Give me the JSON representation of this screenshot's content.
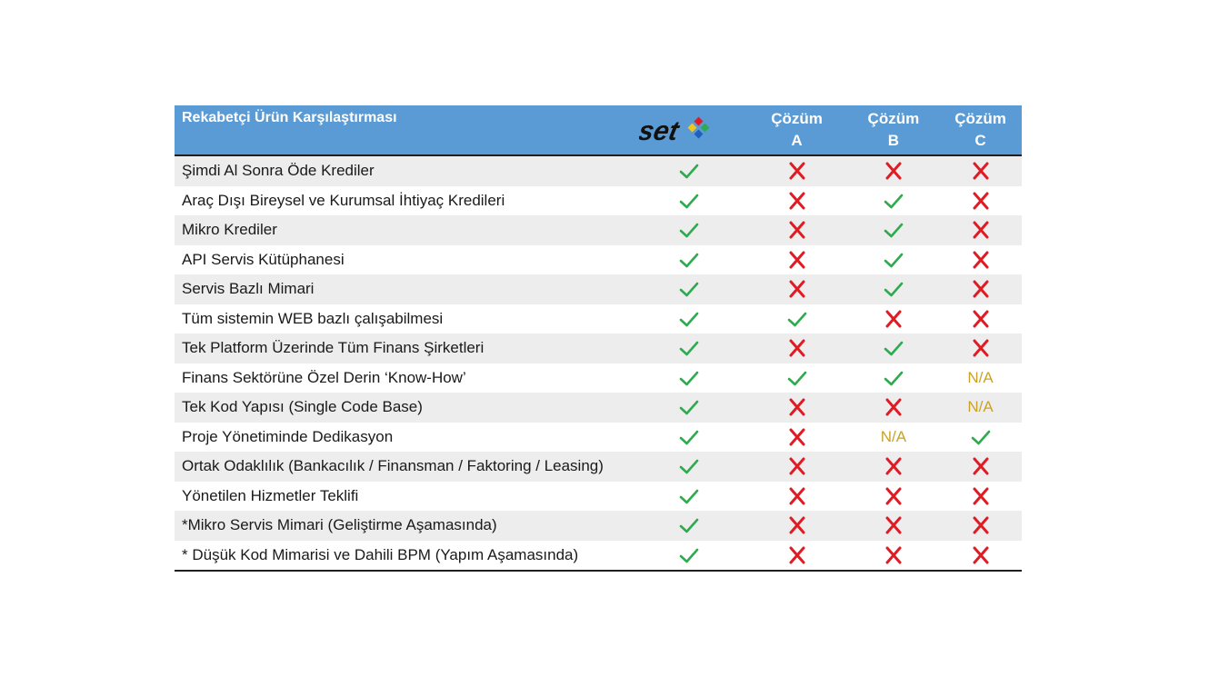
{
  "header": {
    "title": "Rekabetçi Ürün Karşılaştırması",
    "brand_logo_text": "set",
    "col_a": [
      "Çözüm",
      "A"
    ],
    "col_b": [
      "Çözüm",
      "B"
    ],
    "col_c": [
      "Çözüm",
      "C"
    ]
  },
  "colors": {
    "header_bg": "#5b9bd5",
    "check": "#2eaa4f",
    "cross": "#e01b24",
    "na": "#c9a227"
  },
  "rows": [
    {
      "label": "Şimdi Al Sonra Öde Krediler",
      "set": "check",
      "a": "cross",
      "b": "cross",
      "c": "cross"
    },
    {
      "label": "Araç Dışı Bireysel ve Kurumsal İhtiyaç Kredileri",
      "set": "check",
      "a": "cross",
      "b": "check",
      "c": "cross"
    },
    {
      "label": "Mikro Krediler",
      "set": "check",
      "a": "cross",
      "b": "check",
      "c": "cross"
    },
    {
      "label": "API Servis Kütüphanesi",
      "set": "check",
      "a": "cross",
      "b": "check",
      "c": "cross"
    },
    {
      "label": "Servis Bazlı Mimari",
      "set": "check",
      "a": "cross",
      "b": "check",
      "c": "cross"
    },
    {
      "label": "Tüm sistemin WEB bazlı çalışabilmesi",
      "set": "check",
      "a": "check",
      "b": "cross",
      "c": "cross"
    },
    {
      "label": "Tek Platform Üzerinde Tüm Finans Şirketleri",
      "set": "check",
      "a": "cross",
      "b": "check",
      "c": "cross"
    },
    {
      "label": "Finans Sektörüne Özel Derin ‘Know-How’",
      "set": "check",
      "a": "check",
      "b": "check",
      "c": "N/A"
    },
    {
      "label": "Tek Kod Yapısı (Single Code Base)",
      "set": "check",
      "a": "cross",
      "b": "cross",
      "c": "N/A"
    },
    {
      "label": "Proje Yönetiminde Dedikasyon",
      "set": "check",
      "a": "cross",
      "b": "N/A",
      "c": "check"
    },
    {
      "label": "Ortak Odaklılık  (Bankacılık / Finansman / Faktoring / Leasing)",
      "set": "check",
      "a": "cross",
      "b": "cross",
      "c": "cross"
    },
    {
      "label": "Yönetilen Hizmetler Teklifi",
      "set": "check",
      "a": "cross",
      "b": "cross",
      "c": "cross"
    },
    {
      "label": "*Mikro Servis Mimari (Geliştirme Aşamasında)",
      "set": "check",
      "a": "cross",
      "b": "cross",
      "c": "cross"
    },
    {
      "label": "* Düşük Kod Mimarisi ve Dahili BPM (Yapım Aşamasında)",
      "set": "check",
      "a": "cross",
      "b": "cross",
      "c": "cross"
    }
  ]
}
